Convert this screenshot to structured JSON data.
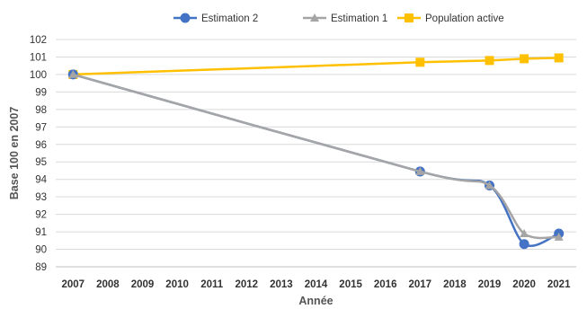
{
  "chart_data": {
    "type": "line",
    "title": "",
    "xlabel": "Année",
    "ylabel": "Base 100 en 2007",
    "ylim": [
      89,
      102
    ],
    "y_ticks": [
      89,
      90,
      91,
      92,
      93,
      94,
      95,
      96,
      97,
      98,
      99,
      100,
      101,
      102
    ],
    "categories": [
      "2007",
      "2008",
      "2009",
      "2010",
      "2011",
      "2012",
      "2013",
      "2014",
      "2015",
      "2016",
      "2017",
      "2018",
      "2019",
      "2020",
      "2021"
    ],
    "grid": "horizontal",
    "legend_position": "top",
    "series": [
      {
        "name": "Estimation 2",
        "color": "#4472C4",
        "marker": "circle",
        "smooth": true,
        "points": [
          [
            2007,
            100
          ],
          [
            2017,
            94.45
          ],
          [
            2019,
            93.65
          ],
          [
            2020,
            90.3
          ],
          [
            2021,
            90.9
          ]
        ]
      },
      {
        "name": "Estimation 1",
        "color": "#A5A5A5",
        "marker": "triangle",
        "smooth": true,
        "points": [
          [
            2007,
            100
          ],
          [
            2017,
            94.45
          ],
          [
            2019,
            93.65
          ],
          [
            2020,
            90.9
          ],
          [
            2021,
            90.7
          ]
        ]
      },
      {
        "name": "Population active",
        "color": "#FFC000",
        "marker": "square",
        "smooth": false,
        "points": [
          [
            2007,
            100
          ],
          [
            2017,
            100.7
          ],
          [
            2019,
            100.8
          ],
          [
            2020,
            100.9
          ],
          [
            2021,
            100.95
          ]
        ]
      }
    ]
  }
}
